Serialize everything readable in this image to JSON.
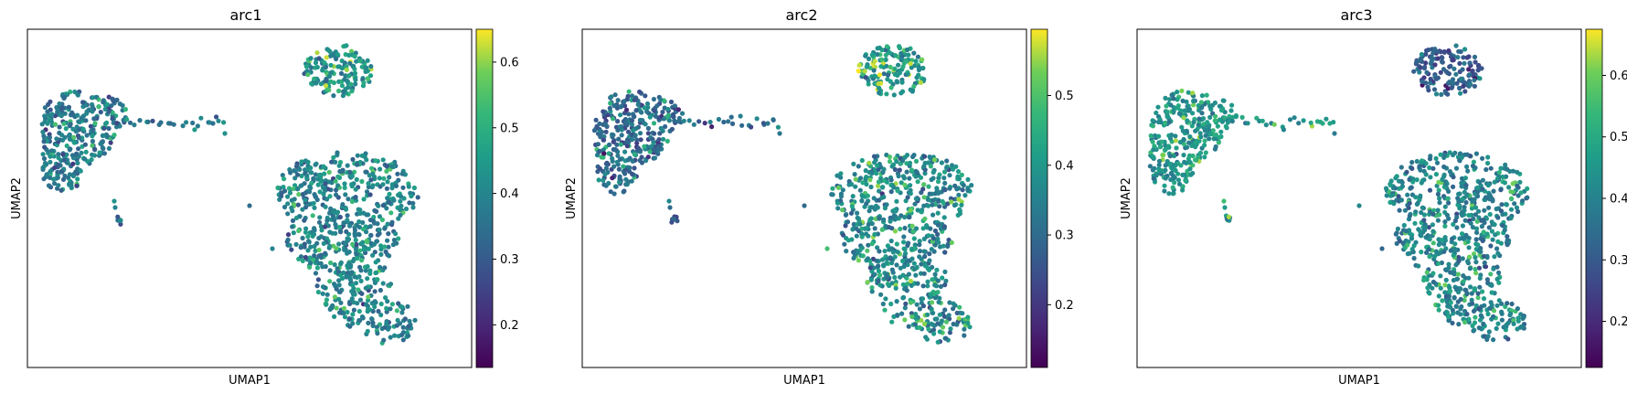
{
  "chart_data": [
    {
      "type": "scatter",
      "title": "arc1",
      "xlabel": "UMAP1",
      "ylabel": "UMAP2",
      "colorbar": {
        "colormap": "viridis",
        "min": 0.135,
        "max": 0.65,
        "ticks": [
          0.2,
          0.3,
          0.4,
          0.5,
          0.6
        ],
        "tick_labels": [
          "0.2",
          "0.3",
          "0.4",
          "0.5",
          "0.6"
        ]
      },
      "clusters": [
        {
          "name": "left",
          "mean": 0.37,
          "hot": 0.5
        },
        {
          "name": "top-right",
          "mean": 0.43,
          "hot": 0.58
        },
        {
          "name": "bottom-right",
          "mean": 0.39,
          "hot": 0.52
        }
      ]
    },
    {
      "type": "scatter",
      "title": "arc2",
      "xlabel": "UMAP1",
      "ylabel": "UMAP2",
      "colorbar": {
        "colormap": "viridis",
        "min": 0.11,
        "max": 0.595,
        "ticks": [
          0.2,
          0.3,
          0.4,
          0.5
        ],
        "tick_labels": [
          "0.2",
          "0.3",
          "0.4",
          "0.5"
        ]
      },
      "clusters": [
        {
          "name": "left",
          "mean": 0.3,
          "hot": 0.44
        },
        {
          "name": "top-right",
          "mean": 0.4,
          "hot": 0.55
        },
        {
          "name": "bottom-right",
          "mean": 0.36,
          "hot": 0.5
        }
      ]
    },
    {
      "type": "scatter",
      "title": "arc3",
      "xlabel": "UMAP1",
      "ylabel": "UMAP2",
      "colorbar": {
        "colormap": "viridis",
        "min": 0.125,
        "max": 0.675,
        "ticks": [
          0.2,
          0.3,
          0.4,
          0.5,
          0.6
        ],
        "tick_labels": [
          "0.2",
          "0.3",
          "0.4",
          "0.5",
          "0.6"
        ]
      },
      "clusters": [
        {
          "name": "left",
          "mean": 0.44,
          "hot": 0.6
        },
        {
          "name": "top-right",
          "mean": 0.3,
          "hot": 0.38
        },
        {
          "name": "bottom-right",
          "mean": 0.4,
          "hot": 0.55
        }
      ]
    }
  ]
}
